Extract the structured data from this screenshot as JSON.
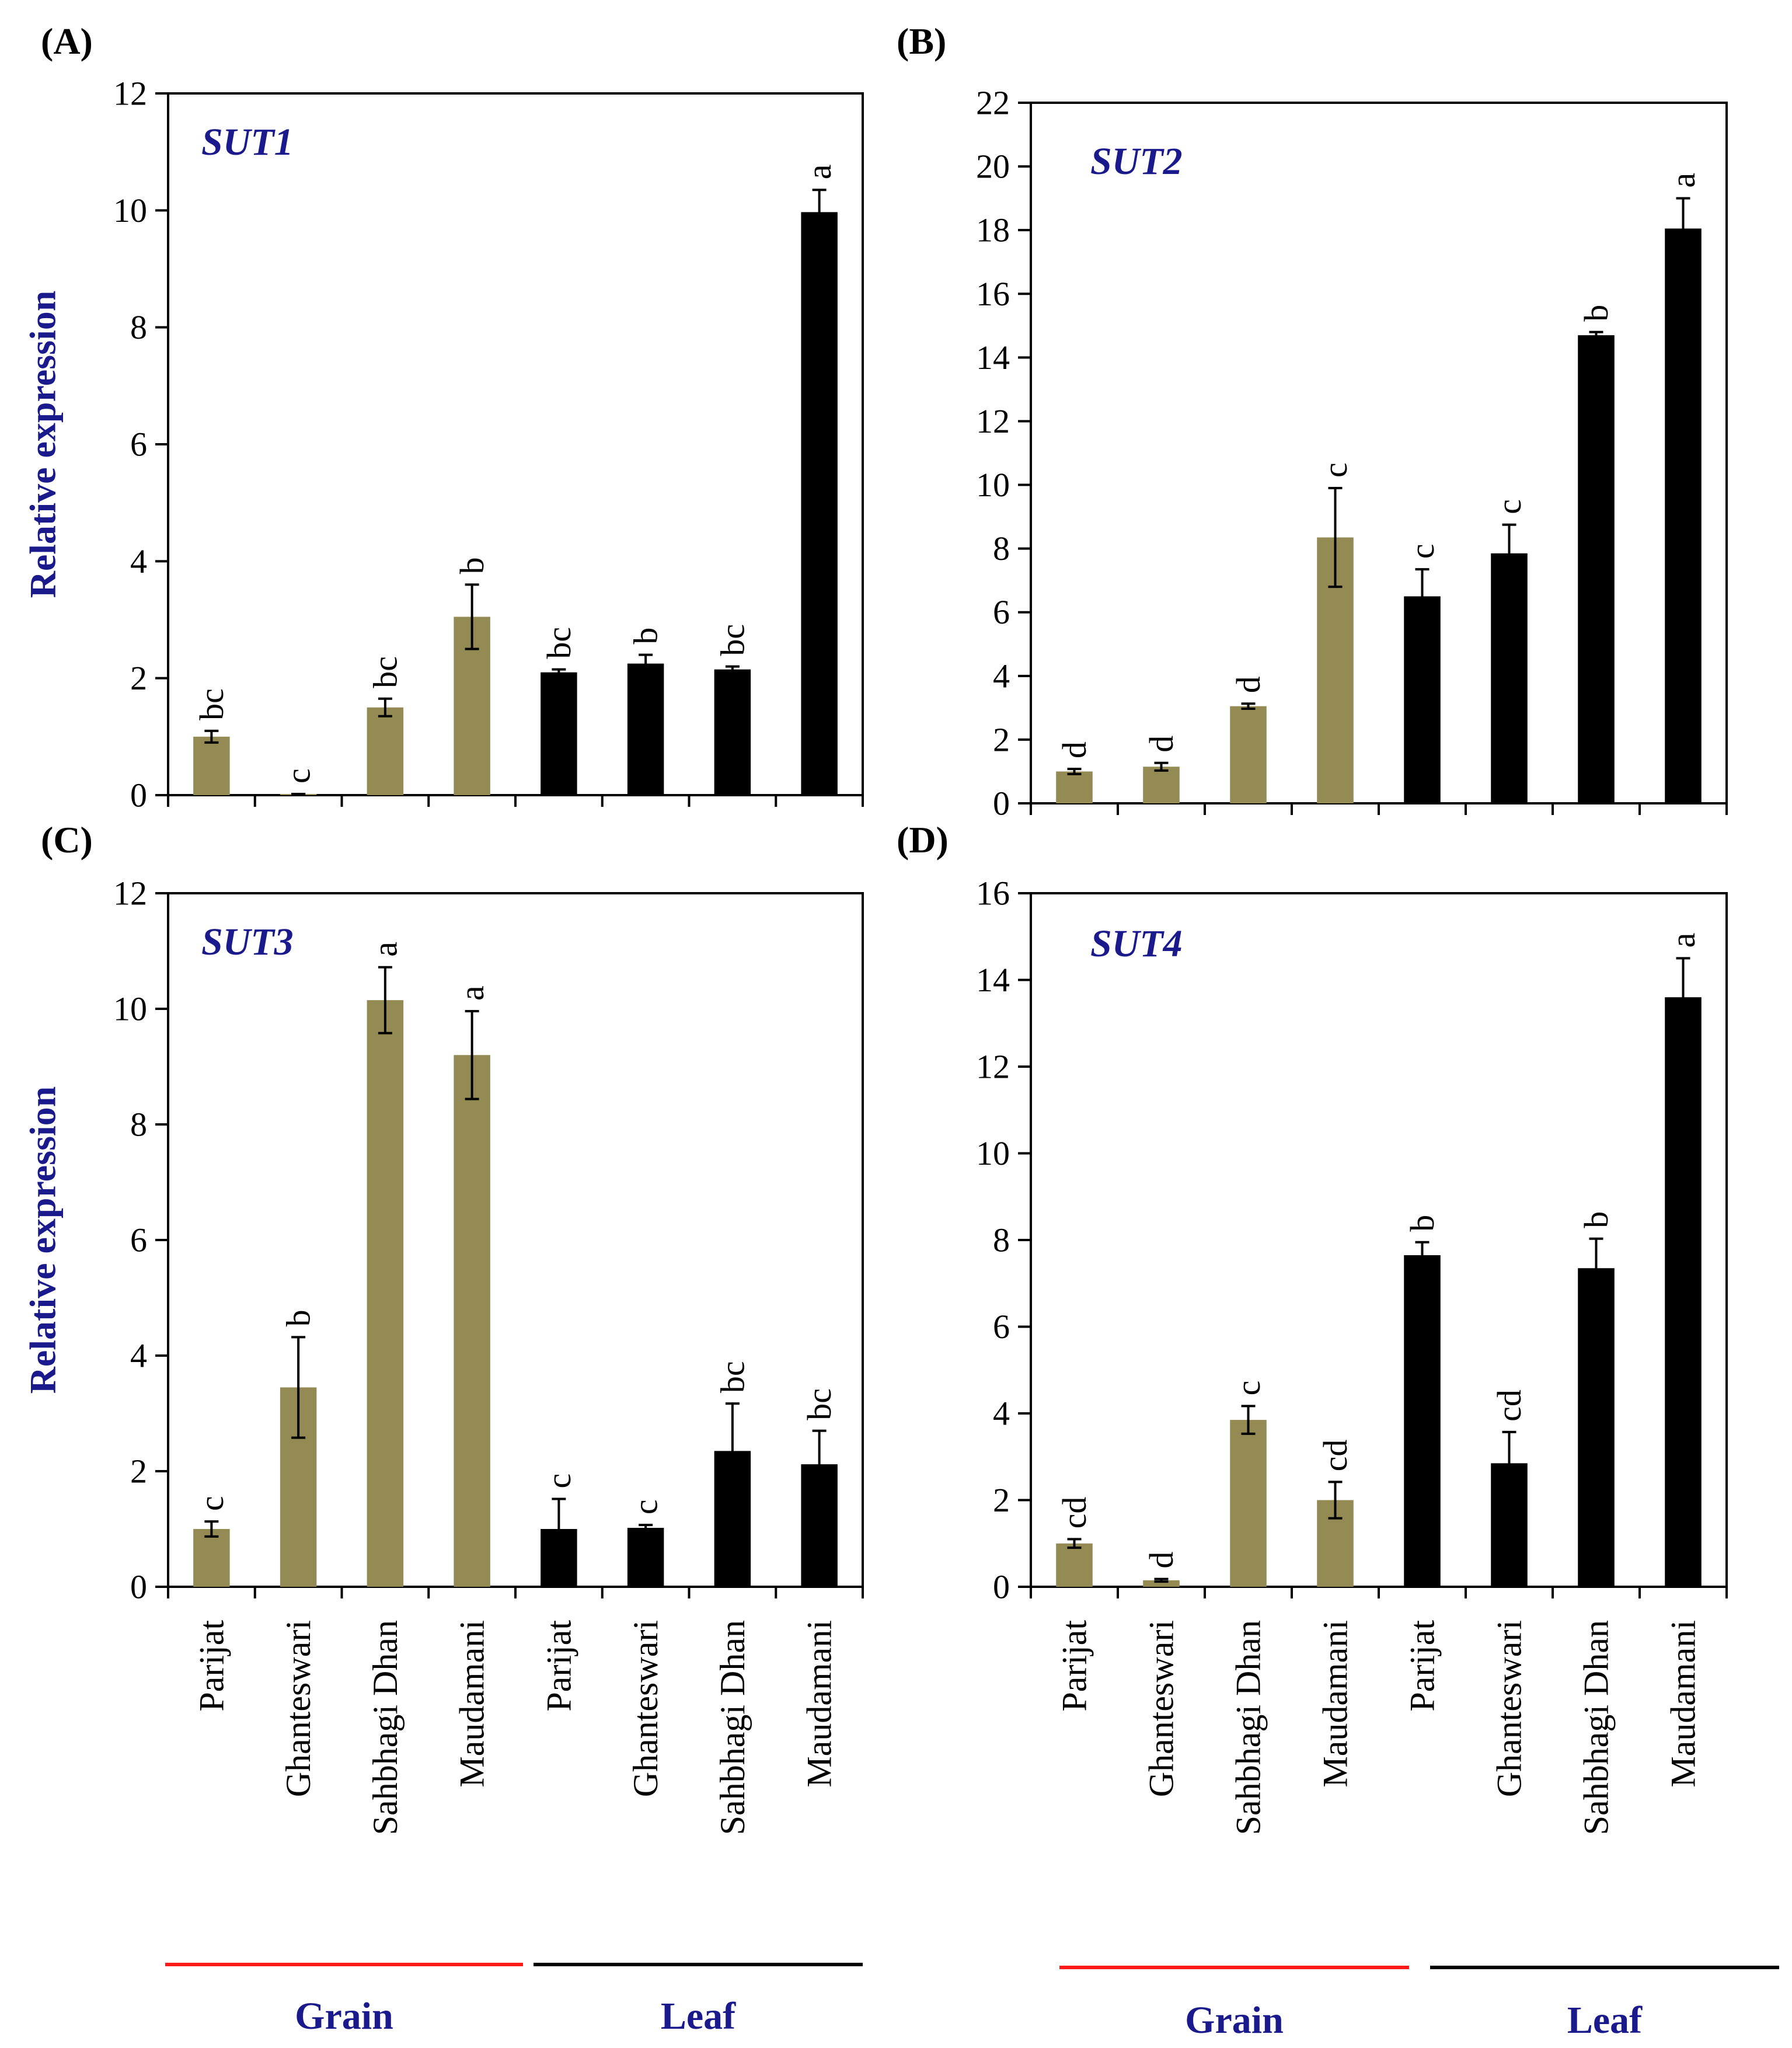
{
  "figure": {
    "y_axis_label": "Relative expression",
    "groups": [
      {
        "name": "Grain",
        "line_color": "#ff1a1a"
      },
      {
        "name": "Leaf",
        "line_color": "#000000"
      }
    ],
    "colors": {
      "grain": "#948a54",
      "leaf": "#000000",
      "gene_label": "#1a1a8c"
    }
  },
  "chart_data": [
    {
      "panel": "(A)",
      "type": "bar",
      "title": "SUT1",
      "ylabel": "Relative expression",
      "ylim": [
        0,
        12
      ],
      "yticks": [
        0,
        2,
        4,
        6,
        8,
        10,
        12
      ],
      "categories": [
        "Parijat",
        "Ghanteswari",
        "Sahbhagi Dhan",
        "Maudamani",
        "Parijat",
        "Ghanteswari",
        "Sahbhagi Dhan",
        "Maudamani"
      ],
      "tissue": [
        "Grain",
        "Grain",
        "Grain",
        "Grain",
        "Leaf",
        "Leaf",
        "Leaf",
        "Leaf"
      ],
      "values": [
        1.0,
        0.02,
        1.5,
        3.05,
        2.1,
        2.25,
        2.15,
        9.97
      ],
      "errors": [
        0.1,
        0.0,
        0.15,
        0.55,
        0.05,
        0.15,
        0.05,
        0.38
      ],
      "significance": [
        "bc",
        "c",
        "bc",
        "b",
        "bc",
        "b",
        "bc",
        "a"
      ]
    },
    {
      "panel": "(B)",
      "type": "bar",
      "title": "SUT2",
      "ylabel": "",
      "ylim": [
        0,
        22
      ],
      "yticks": [
        0,
        2,
        4,
        6,
        8,
        10,
        12,
        14,
        16,
        18,
        20,
        22
      ],
      "categories": [
        "Parijat",
        "Ghanteswari",
        "Sahbhagi Dhan",
        "Maudamani",
        "Parijat",
        "Ghanteswari",
        "Sahbhagi Dhan",
        "Maudamani"
      ],
      "tissue": [
        "Grain",
        "Grain",
        "Grain",
        "Grain",
        "Leaf",
        "Leaf",
        "Leaf",
        "Leaf"
      ],
      "values": [
        1.0,
        1.15,
        3.05,
        8.35,
        6.5,
        7.85,
        14.7,
        18.05
      ],
      "errors": [
        0.08,
        0.12,
        0.08,
        1.55,
        0.85,
        0.9,
        0.1,
        0.95
      ],
      "significance": [
        "d",
        "d",
        "d",
        "c",
        "c",
        "c",
        "b",
        "a"
      ]
    },
    {
      "panel": "(C)",
      "type": "bar",
      "title": "SUT3",
      "ylabel": "Relative expression",
      "ylim": [
        0,
        12
      ],
      "yticks": [
        0,
        2,
        4,
        6,
        8,
        10,
        12
      ],
      "categories": [
        "Parijat",
        "Ghanteswari",
        "Sahbhagi Dhan",
        "Maudamani",
        "Parijat",
        "Ghanteswari",
        "Sahbhagi Dhan",
        "Maudamani"
      ],
      "tissue": [
        "Grain",
        "Grain",
        "Grain",
        "Grain",
        "Leaf",
        "Leaf",
        "Leaf",
        "Leaf"
      ],
      "values": [
        1.0,
        3.45,
        10.15,
        9.2,
        1.0,
        1.02,
        2.35,
        2.12
      ],
      "errors": [
        0.13,
        0.87,
        0.57,
        0.76,
        0.52,
        0.05,
        0.82,
        0.58
      ],
      "significance": [
        "c",
        "b",
        "a",
        "a",
        "c",
        "c",
        "bc",
        "bc"
      ]
    },
    {
      "panel": "(D)",
      "type": "bar",
      "title": "SUT4",
      "ylabel": "",
      "ylim": [
        0,
        16
      ],
      "yticks": [
        0,
        2,
        4,
        6,
        8,
        10,
        12,
        14,
        16
      ],
      "categories": [
        "Parijat",
        "Ghanteswari",
        "Sahbhagi Dhan",
        "Maudamani",
        "Parijat",
        "Ghanteswari",
        "Sahbhagi Dhan",
        "Maudamani"
      ],
      "tissue": [
        "Grain",
        "Grain",
        "Grain",
        "Grain",
        "Leaf",
        "Leaf",
        "Leaf",
        "Leaf"
      ],
      "values": [
        1.0,
        0.15,
        3.85,
        2.0,
        7.65,
        2.85,
        7.35,
        13.6
      ],
      "errors": [
        0.1,
        0.03,
        0.32,
        0.42,
        0.3,
        0.72,
        0.68,
        0.9
      ],
      "significance": [
        "cd",
        "d",
        "c",
        "cd",
        "b",
        "cd",
        "b",
        "a"
      ]
    }
  ]
}
